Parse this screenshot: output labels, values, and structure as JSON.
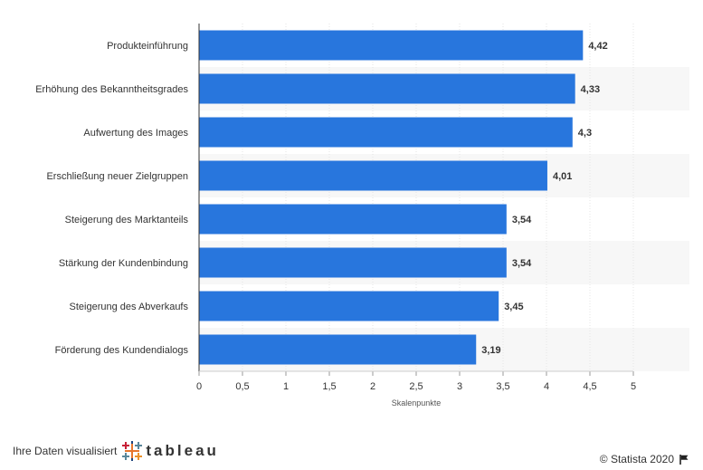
{
  "chart_data": {
    "type": "bar",
    "orientation": "horizontal",
    "categories": [
      "Produkteinführung",
      "Erhöhung des Bekanntheitsgrades",
      "Aufwertung des Images",
      "Erschließung neuer Zielgruppen",
      "Steigerung des Marktanteils",
      "Stärkung der Kundenbindung",
      "Steigerung des Abverkaufs",
      "Förderung des Kundendialogs"
    ],
    "values": [
      4.42,
      4.33,
      4.3,
      4.01,
      3.54,
      3.54,
      3.45,
      3.19
    ],
    "value_labels": [
      "4,42",
      "4,33",
      "4,3",
      "4,01",
      "3,54",
      "3,54",
      "3,45",
      "3,19"
    ],
    "xticks": [
      0,
      0.5,
      1,
      1.5,
      2,
      2.5,
      3,
      3.5,
      4,
      4.5,
      5
    ],
    "xtick_labels": [
      "0",
      "0,5",
      "1",
      "1,5",
      "2",
      "2,5",
      "3",
      "3,5",
      "4",
      "4,5",
      "5"
    ],
    "xlim": [
      0,
      5
    ],
    "xlabel": "Skalenpunkte",
    "ylabel": "",
    "title": "",
    "bar_color": "#2876dd",
    "band_color": "#f7f7f7",
    "grid": true
  },
  "footer": {
    "left_text": "Ihre Daten visualisiert",
    "tableau_logo": "tableau",
    "copyright": "© Statista 2020",
    "flag_icon": "flag-icon"
  }
}
